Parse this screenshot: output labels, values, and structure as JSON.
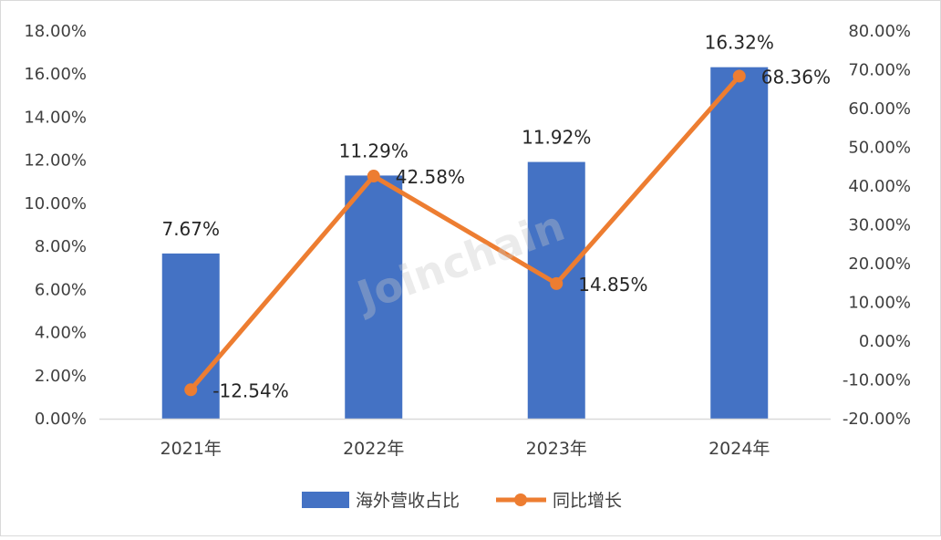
{
  "chart_data": {
    "type": "bar",
    "categories": [
      "2021年",
      "2022年",
      "2023年",
      "2024年"
    ],
    "series": [
      {
        "name": "海外营收占比",
        "type": "bar",
        "axis": "left",
        "color": "#4472C4",
        "values": [
          7.67,
          11.29,
          11.92,
          16.32
        ],
        "labels": [
          "7.67%",
          "11.29%",
          "11.92%",
          "16.32%"
        ]
      },
      {
        "name": "同比增长",
        "type": "line",
        "axis": "right",
        "color": "#ED7D31",
        "values": [
          -12.54,
          42.58,
          14.85,
          68.36
        ],
        "labels": [
          "-12.54%",
          "42.58%",
          "14.85%",
          "68.36%"
        ]
      }
    ],
    "y_left": {
      "ylim": [
        0,
        18
      ],
      "ticks": [
        "0.00%",
        "2.00%",
        "4.00%",
        "6.00%",
        "8.00%",
        "10.00%",
        "12.00%",
        "14.00%",
        "16.00%",
        "18.00%"
      ]
    },
    "y_right": {
      "ylim": [
        -20,
        80
      ],
      "ticks": [
        "-20.00%",
        "-10.00%",
        "0.00%",
        "10.00%",
        "20.00%",
        "30.00%",
        "40.00%",
        "50.00%",
        "60.00%",
        "70.00%",
        "80.00%"
      ]
    },
    "grid": false,
    "legend": "bottom"
  },
  "watermark": "Joinchain"
}
